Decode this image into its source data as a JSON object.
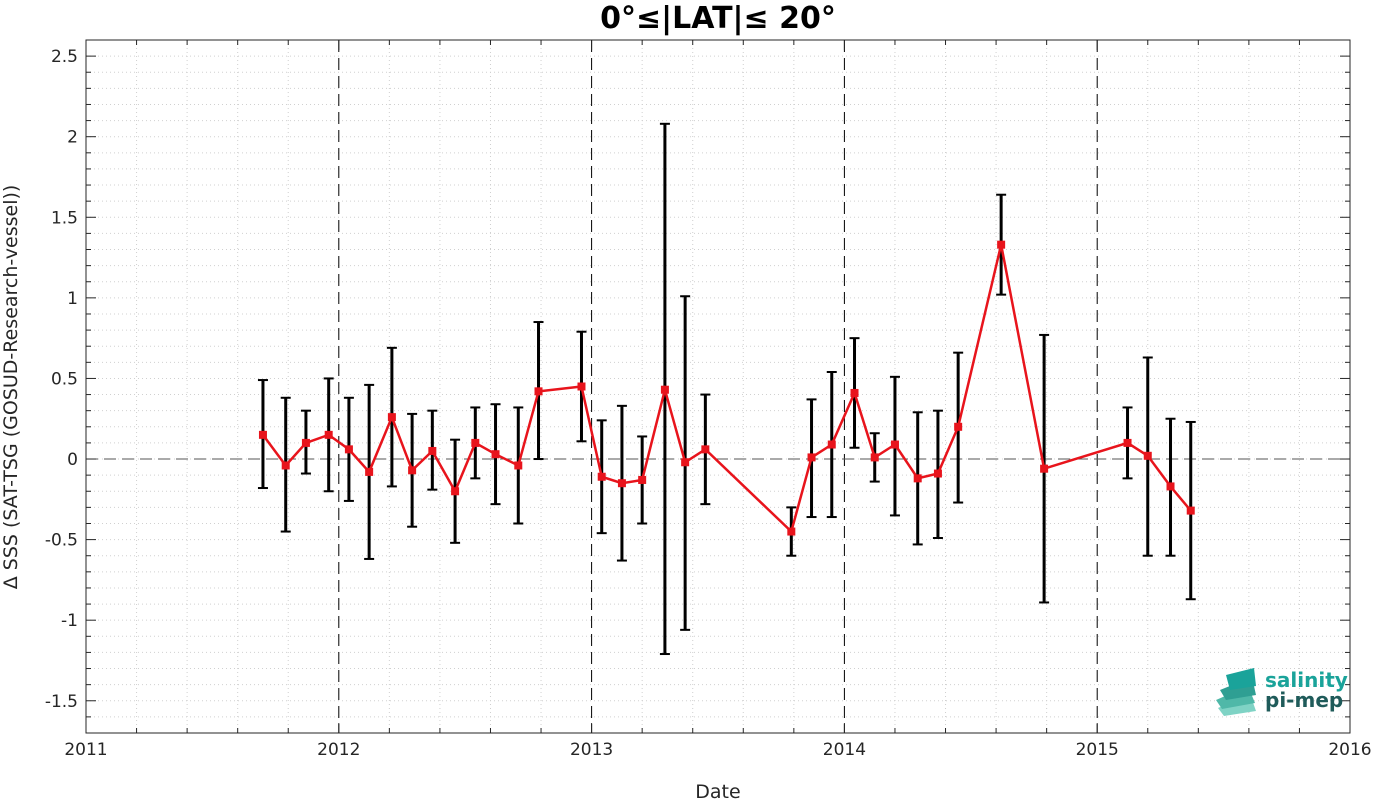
{
  "chart_data": {
    "type": "line",
    "title": "0°≤|LAT|≤ 20°",
    "xlabel": "Date",
    "ylabel": "Δ SSS (SAT-TSG (GOSUD-Research-vessel))",
    "xlim": [
      2011,
      2016
    ],
    "ylim": [
      -1.7,
      2.6
    ],
    "x_ticks": [
      2011,
      2012,
      2013,
      2014,
      2015,
      2016
    ],
    "x_tick_labels": [
      "2011",
      "2012",
      "2013",
      "2014",
      "2015",
      "2016"
    ],
    "y_ticks": [
      -1.5,
      -1,
      -0.5,
      0,
      0.5,
      1,
      1.5,
      2,
      2.5
    ],
    "y_tick_labels": [
      "-1.5",
      "-1",
      "-0.5",
      "0",
      "0.5",
      "1",
      "1.5",
      "2",
      "2.5"
    ],
    "grid": "minor dotted",
    "year_markers": "dashed vertical lines at year boundaries",
    "zero_line": "dashed horizontal line at 0",
    "colors": {
      "series": "#e8141c",
      "errorbar": "#000000",
      "grid": "#d0d0d0"
    },
    "series": [
      {
        "x": [
          2011.7,
          2011.79,
          2011.87,
          2011.96,
          2012.04,
          2012.12,
          2012.21,
          2012.29,
          2012.37,
          2012.46,
          2012.54,
          2012.62,
          2012.71,
          2012.79,
          2012.96,
          2013.04,
          2013.12,
          2013.2,
          2013.29,
          2013.37,
          2013.45,
          2013.79,
          2013.87,
          2013.95,
          2014.04,
          2014.12,
          2014.2,
          2014.29,
          2014.37,
          2014.45,
          2014.62,
          2014.79,
          2015.12,
          2015.2,
          2015.29,
          2015.37
        ],
        "values": [
          0.15,
          -0.04,
          0.1,
          0.15,
          0.06,
          -0.08,
          0.26,
          -0.07,
          0.05,
          -0.2,
          0.1,
          0.03,
          -0.04,
          0.42,
          0.45,
          -0.11,
          -0.15,
          -0.13,
          0.43,
          -0.02,
          0.06,
          -0.45,
          0.01,
          0.09,
          0.41,
          0.01,
          0.09,
          -0.12,
          -0.09,
          0.2,
          1.33,
          -0.06,
          0.1,
          0.02,
          -0.17,
          -0.32
        ],
        "err_low": [
          -0.18,
          -0.45,
          -0.09,
          -0.2,
          -0.26,
          -0.62,
          -0.17,
          -0.42,
          -0.19,
          -0.52,
          -0.12,
          -0.28,
          -0.4,
          0.0,
          0.11,
          -0.46,
          -0.63,
          -0.4,
          -1.21,
          -1.06,
          -0.28,
          -0.6,
          -0.36,
          -0.36,
          0.07,
          -0.14,
          -0.35,
          -0.53,
          -0.49,
          -0.27,
          1.02,
          -0.89,
          -0.12,
          -0.6,
          -0.6,
          -0.87
        ],
        "err_high": [
          0.49,
          0.38,
          0.3,
          0.5,
          0.38,
          0.46,
          0.69,
          0.28,
          0.3,
          0.12,
          0.32,
          0.34,
          0.32,
          0.85,
          0.79,
          0.24,
          0.33,
          0.14,
          2.08,
          1.01,
          0.4,
          -0.3,
          0.37,
          0.54,
          0.75,
          0.16,
          0.51,
          0.29,
          0.3,
          0.66,
          1.64,
          0.77,
          0.32,
          0.63,
          0.25,
          0.23
        ]
      }
    ]
  },
  "logo": {
    "line1": "salinity",
    "line2": "pi-mep",
    "color1": "#1aa39a",
    "color2": "#1f5b5a"
  }
}
